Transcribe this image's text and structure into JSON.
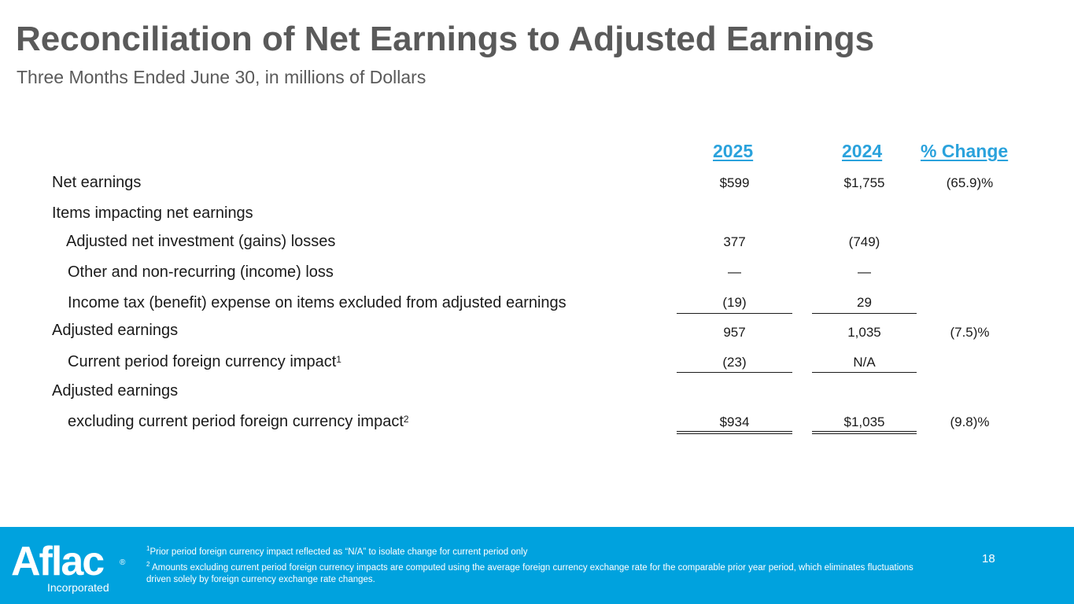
{
  "header": {
    "title": "Reconciliation of Net Earnings to Adjusted Earnings",
    "subtitle": "Three Months Ended June 30, in millions of Dollars"
  },
  "table": {
    "columns": [
      "2025",
      "2024",
      "% Change"
    ],
    "rows": [
      {
        "label": "Net earnings",
        "v2025": "$599",
        "v2024": "$1,755",
        "change": "(65.9)%"
      },
      {
        "label": "Items impacting net earnings"
      },
      {
        "label": "Adjusted net investment (gains) losses",
        "v2025": "377",
        "v2024": "(749)"
      },
      {
        "label": "Other and non-recurring (income) loss",
        "v2025": "—",
        "v2024": "—"
      },
      {
        "label": "Income tax (benefit) expense on items excluded from adjusted earnings",
        "v2025": "(19)",
        "v2024": "29"
      },
      {
        "label": "Adjusted earnings",
        "v2025": "957",
        "v2024": "1,035",
        "change": "(7.5)%"
      },
      {
        "label": "Current period foreign currency impact",
        "sup": "1",
        "v2025": "(23)",
        "v2024": "N/A"
      },
      {
        "label": "Adjusted earnings"
      },
      {
        "label": "excluding current period foreign currency impact",
        "sup": "2",
        "v2025": "$934",
        "v2024": "$1,035",
        "change": "(9.8)%"
      }
    ]
  },
  "footer": {
    "logo_text": "Aflac",
    "logo_reg": "®",
    "logo_subtext": "Incorporated",
    "footnote1_sup": "1",
    "footnote1": "Prior period foreign currency impact reflected as “N/A” to isolate change for current period only",
    "footnote2_sup": "2",
    "footnote2": " Amounts excluding current period foreign currency impacts are computed using the average foreign currency exchange rate for the comparable prior year period, which eliminates fluctuations driven solely by foreign currency exchange rate changes.",
    "page_number": "18"
  },
  "colors": {
    "accent": "#2aa2dc",
    "footer_bg": "#00a2de",
    "title": "#5a5a5a"
  }
}
